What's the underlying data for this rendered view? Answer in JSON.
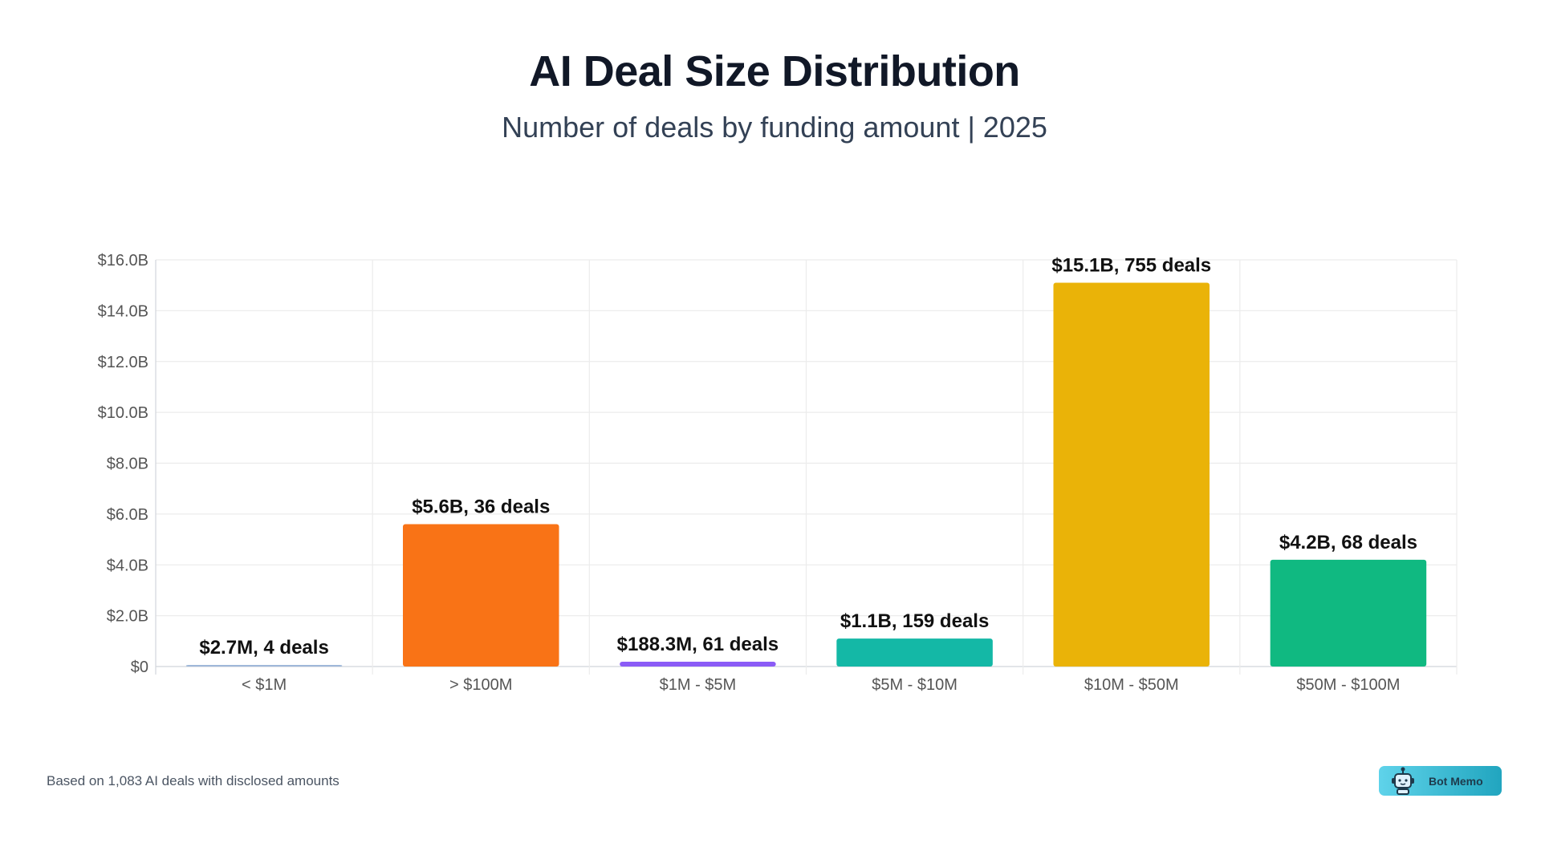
{
  "header": {
    "title": "AI Deal Size Distribution",
    "subtitle": "Number of deals by funding amount | 2025"
  },
  "footer": {
    "note": "Based on 1,083 AI deals with disclosed amounts",
    "badge_label": "Bot Memo",
    "badge_icon": "robot-icon"
  },
  "chart_data": {
    "type": "bar",
    "title": "AI Deal Size Distribution",
    "subtitle": "Number of deals by funding amount | 2025",
    "xlabel": "",
    "ylabel": "",
    "categories": [
      "< $1M",
      "> $100M",
      "$1M - $5M",
      "$5M - $10M",
      "$10M - $50M",
      "$50M - $100M"
    ],
    "values_billion_usd": [
      0.0027,
      5.6,
      0.1883,
      1.1,
      15.1,
      4.2
    ],
    "deal_counts": [
      4,
      36,
      61,
      159,
      755,
      68
    ],
    "data_labels": [
      "$2.7M, 4 deals",
      "$5.6B, 36 deals",
      "$188.3M, 61 deals",
      "$1.1B, 159 deals",
      "$15.1B, 755 deals",
      "$4.2B, 68 deals"
    ],
    "colors": [
      "#9fb8d9",
      "#f97316",
      "#8b5cf6",
      "#14b8a6",
      "#eab308",
      "#10b981"
    ],
    "ylim": [
      0,
      16
    ],
    "yticks": [
      0,
      2,
      4,
      6,
      8,
      10,
      12,
      14,
      16
    ],
    "ytick_labels": [
      "$0",
      "$2.0B",
      "$4.0B",
      "$6.0B",
      "$8.0B",
      "$10.0B",
      "$12.0B",
      "$14.0B",
      "$16.0B"
    ],
    "grid": true,
    "legend": "none"
  }
}
